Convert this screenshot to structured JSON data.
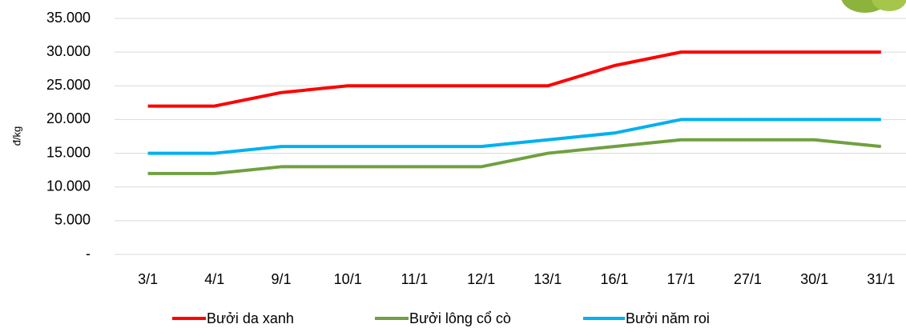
{
  "chart_data": {
    "type": "line",
    "y_label": "đ/kg",
    "categories": [
      "3/1",
      "4/1",
      "9/1",
      "10/1",
      "11/1",
      "12/1",
      "13/1",
      "16/1",
      "17/1",
      "27/1",
      "30/1",
      "31/1"
    ],
    "series": [
      {
        "name": "Bưởi da xanh",
        "color": "#ff0000",
        "values": [
          22000,
          22000,
          24000,
          25000,
          25000,
          25000,
          25000,
          28000,
          30000,
          30000,
          30000,
          30000
        ]
      },
      {
        "name": "Bưởi lông cổ cò",
        "color": "#70a040",
        "values": [
          12000,
          12000,
          13000,
          13000,
          13000,
          13000,
          15000,
          16000,
          17000,
          17000,
          17000,
          16000
        ]
      },
      {
        "name": "Bưởi năm roi",
        "color": "#00b0f0",
        "values": [
          15000,
          15000,
          16000,
          16000,
          16000,
          16000,
          17000,
          18000,
          20000,
          20000,
          20000,
          20000
        ]
      }
    ],
    "ylim": [
      0,
      35000
    ],
    "yticks": [
      {
        "value": 0,
        "label": "-"
      },
      {
        "value": 5000,
        "label": "5.000"
      },
      {
        "value": 10000,
        "label": "10.000"
      },
      {
        "value": 15000,
        "label": "15.000"
      },
      {
        "value": 20000,
        "label": "20.000"
      },
      {
        "value": 25000,
        "label": "25.000"
      },
      {
        "value": 30000,
        "label": "30.000"
      },
      {
        "value": 35000,
        "label": "35.000"
      }
    ],
    "grid": true,
    "legend": "bottom"
  }
}
